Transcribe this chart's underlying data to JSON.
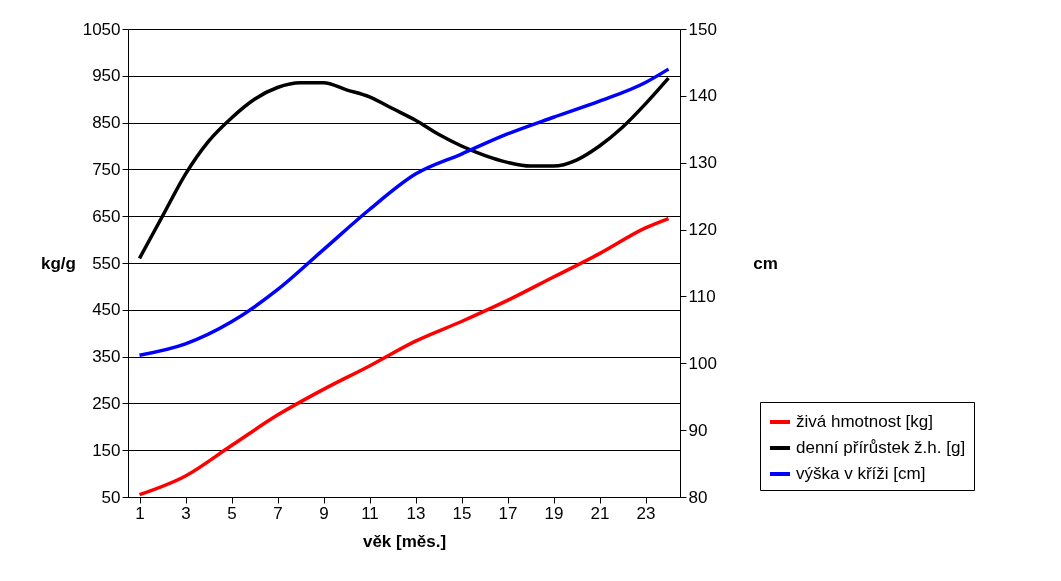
{
  "chart_data": {
    "type": "line",
    "xlabel": "věk [měs.]",
    "ylabel": "kg/g",
    "y2label": "cm",
    "xlim": [
      0.5,
      24.5
    ],
    "xticks": [
      1,
      3,
      5,
      7,
      9,
      11,
      13,
      15,
      17,
      19,
      21,
      23
    ],
    "ylim": [
      50,
      1050
    ],
    "yticks": [
      50,
      150,
      250,
      350,
      450,
      550,
      650,
      750,
      850,
      950,
      1050
    ],
    "y2lim": [
      80,
      150
    ],
    "y2ticks": [
      80,
      90,
      100,
      110,
      120,
      130,
      140,
      150
    ],
    "grid": "y",
    "legend": "bottom right",
    "marker": "none",
    "line_style": "solid",
    "series": [
      {
        "name": "živá hmotnost [kg]",
        "color": "#ff0000",
        "x": [
          1,
          3,
          5,
          7,
          9,
          11,
          13,
          15,
          17,
          19,
          21,
          23,
          24
        ],
        "values": [
          55,
          95,
          160,
          225,
          280,
          330,
          383,
          425,
          470,
          520,
          570,
          625,
          645
        ]
      },
      {
        "name": "denní přírůstek ž.h. [g]",
        "color": "#000000",
        "x": [
          1,
          2,
          3,
          4,
          5,
          6,
          7,
          8,
          9,
          10,
          11,
          12,
          13,
          14,
          15,
          16,
          17,
          18,
          19,
          20,
          21,
          22,
          23,
          24
        ],
        "values": [
          560,
          650,
          740,
          810,
          860,
          900,
          925,
          935,
          935,
          920,
          905,
          880,
          855,
          825,
          800,
          780,
          765,
          757,
          757,
          770,
          800,
          840,
          890,
          945
        ]
      },
      {
        "name": "výška v kříži [cm]",
        "color": "#0000ff",
        "axis": "y2",
        "x": [
          1,
          3,
          5,
          7,
          9,
          11,
          13,
          15,
          17,
          19,
          21,
          23,
          24
        ],
        "values": [
          101.2,
          102.9,
          106.2,
          111,
          117,
          123,
          128.3,
          131.3,
          134.3,
          136.8,
          139.2,
          142,
          144
        ]
      }
    ]
  }
}
